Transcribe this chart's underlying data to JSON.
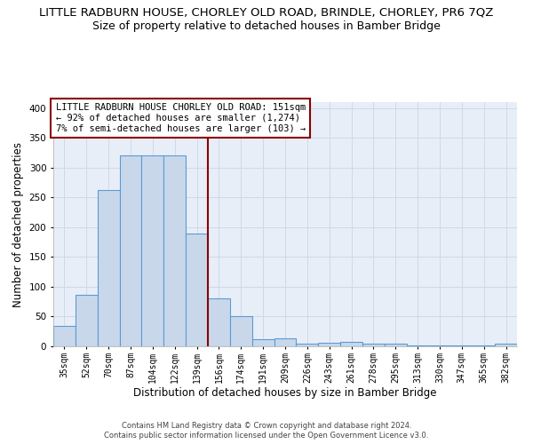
{
  "title": "LITTLE RADBURN HOUSE, CHORLEY OLD ROAD, BRINDLE, CHORLEY, PR6 7QZ",
  "subtitle": "Size of property relative to detached houses in Bamber Bridge",
  "xlabel": "Distribution of detached houses by size in Bamber Bridge",
  "ylabel": "Number of detached properties",
  "footnote1": "Contains HM Land Registry data © Crown copyright and database right 2024.",
  "footnote2": "Contains public sector information licensed under the Open Government Licence v3.0.",
  "bar_labels": [
    "35sqm",
    "52sqm",
    "70sqm",
    "87sqm",
    "104sqm",
    "122sqm",
    "139sqm",
    "156sqm",
    "174sqm",
    "191sqm",
    "209sqm",
    "226sqm",
    "243sqm",
    "261sqm",
    "278sqm",
    "295sqm",
    "313sqm",
    "330sqm",
    "347sqm",
    "365sqm",
    "382sqm"
  ],
  "bar_values": [
    34,
    86,
    262,
    321,
    321,
    321,
    190,
    81,
    51,
    12,
    14,
    5,
    6,
    8,
    5,
    4,
    1,
    1,
    1,
    1,
    4
  ],
  "bar_color": "#c8d8ea",
  "bar_edge_color": "#5b9bd5",
  "vline_color": "#8b0000",
  "ylim": [
    0,
    410
  ],
  "annotation_box_text": "LITTLE RADBURN HOUSE CHORLEY OLD ROAD: 151sqm\n← 92% of detached houses are smaller (1,274)\n7% of semi-detached houses are larger (103) →",
  "annotation_box_color": "#8b0000",
  "annotation_box_bg": "#ffffff",
  "background_color": "#e8eef8",
  "grid_color": "#d0d8e8",
  "title_fontsize": 9.5,
  "subtitle_fontsize": 9,
  "axis_label_fontsize": 8.5,
  "tick_fontsize": 7,
  "annotation_fontsize": 7.5,
  "footnote_fontsize": 6
}
